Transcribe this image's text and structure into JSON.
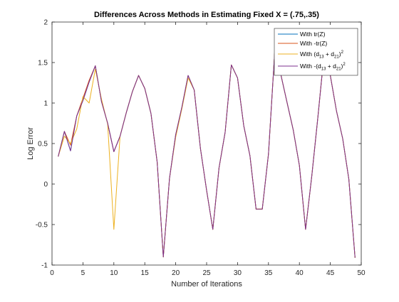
{
  "chart_data": {
    "type": "line",
    "title": "Differences Across Methods in Estimating Fixed X = (.75,.35)",
    "xlabel": "Number of Iterations",
    "ylabel": "Log Error",
    "xlim": [
      0,
      50
    ],
    "ylim": [
      -1,
      2
    ],
    "xticks": [
      "0",
      "5",
      "10",
      "15",
      "20",
      "25",
      "30",
      "35",
      "40",
      "45",
      "50"
    ],
    "yticks": [
      "-1",
      "-0.5",
      "0",
      "0.5",
      "1",
      "1.5",
      "2"
    ],
    "grid": false,
    "legend_position": "top-right",
    "x": [
      1,
      2,
      3,
      4,
      5,
      6,
      7,
      8,
      9,
      10,
      11,
      12,
      13,
      14,
      15,
      16,
      17,
      18,
      19,
      20,
      21,
      22,
      23,
      24,
      25,
      26,
      27,
      28,
      29,
      30,
      31,
      32,
      33,
      34,
      35,
      36,
      37,
      38,
      39,
      40,
      41,
      42,
      43,
      44,
      45,
      46,
      47,
      48,
      49
    ],
    "series": [
      {
        "name": "With tr(Z)",
        "color": "#0072BD",
        "values": [
          0.34,
          0.65,
          0.41,
          0.84,
          1.03,
          1.26,
          1.46,
          1.02,
          0.75,
          0.4,
          0.59,
          0.88,
          1.14,
          1.34,
          1.18,
          0.87,
          0.27,
          -0.9,
          0.07,
          0.61,
          0.95,
          1.34,
          1.16,
          0.44,
          -0.08,
          -0.56,
          0.2,
          0.64,
          1.47,
          1.31,
          0.72,
          0.35,
          -0.31,
          -0.31,
          0.37,
          1.62,
          1.35,
          1.01,
          0.67,
          0.23,
          -0.56,
          0.1,
          0.83,
          1.61,
          1.34,
          0.9,
          0.56,
          0.06,
          -0.91
        ]
      },
      {
        "name": "With -tr(Z)",
        "color": "#D95319",
        "values": [
          0.34,
          0.65,
          0.48,
          0.84,
          1.06,
          1.28,
          1.46,
          1.02,
          0.75,
          0.4,
          0.59,
          0.88,
          1.14,
          1.34,
          1.18,
          0.87,
          0.27,
          -0.9,
          0.07,
          0.61,
          0.95,
          1.34,
          1.16,
          0.44,
          -0.08,
          -0.56,
          0.2,
          0.64,
          1.47,
          1.31,
          0.72,
          0.35,
          -0.31,
          -0.31,
          0.37,
          1.62,
          1.35,
          1.01,
          0.67,
          0.23,
          -0.56,
          0.1,
          0.83,
          1.61,
          1.34,
          0.9,
          0.56,
          0.06,
          -0.91
        ]
      },
      {
        "name": "With (d₁₃ + d₂₁)²",
        "color": "#EDB120",
        "values": [
          0.34,
          0.59,
          0.5,
          0.68,
          1.08,
          1.0,
          1.42,
          1.05,
          0.74,
          -0.56,
          0.59,
          0.88,
          1.14,
          1.34,
          1.18,
          0.87,
          0.27,
          -0.9,
          0.07,
          0.58,
          0.93,
          1.31,
          1.16,
          0.44,
          -0.08,
          -0.56,
          0.2,
          0.64,
          1.47,
          1.31,
          0.72,
          0.35,
          -0.31,
          -0.31,
          0.37,
          1.62,
          1.35,
          1.01,
          0.67,
          0.23,
          -0.56,
          0.1,
          0.83,
          1.61,
          1.34,
          0.9,
          0.56,
          0.06,
          -0.91
        ]
      },
      {
        "name": "With -(d₁₃ + d₂₁)²",
        "color": "#7E2F8E",
        "values": [
          0.34,
          0.65,
          0.41,
          0.84,
          1.03,
          1.26,
          1.46,
          1.02,
          0.75,
          0.4,
          0.59,
          0.88,
          1.14,
          1.34,
          1.18,
          0.87,
          0.27,
          -0.9,
          0.07,
          0.61,
          0.95,
          1.34,
          1.16,
          0.44,
          -0.08,
          -0.56,
          0.2,
          0.64,
          1.47,
          1.31,
          0.72,
          0.35,
          -0.31,
          -0.31,
          0.37,
          1.62,
          1.35,
          1.01,
          0.67,
          0.23,
          -0.56,
          0.1,
          0.83,
          1.61,
          1.34,
          0.9,
          0.56,
          0.06,
          -0.91
        ]
      }
    ]
  },
  "legend": {
    "entries": [
      {
        "prefix": "With tr(Z)"
      },
      {
        "prefix": "With -tr(Z)"
      },
      {
        "prefix": "With (d",
        "sub1": "13",
        "mid": " + d",
        "sub2": "21",
        "suffix": ")",
        "sup": "2"
      },
      {
        "prefix": "With -(d",
        "sub1": "13",
        "mid": " + d",
        "sub2": "21",
        "suffix": ")",
        "sup": "2"
      }
    ]
  }
}
